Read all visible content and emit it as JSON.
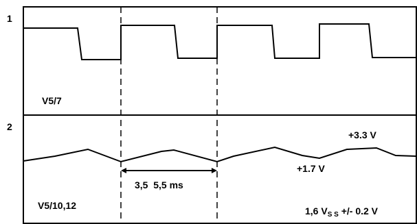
{
  "panels": [
    {
      "number": "1",
      "label": "V5/7"
    },
    {
      "number": "2",
      "label": "V5/10,12"
    }
  ],
  "annotations": {
    "upper_voltage": "+3.3 V",
    "lower_voltage": "+1.7 V",
    "timing": "3,5  5,5 ms",
    "vss_prefix": "1,6 V",
    "vss_subscript": "S S",
    "vss_suffix": " +/- 0.2 V"
  }
}
